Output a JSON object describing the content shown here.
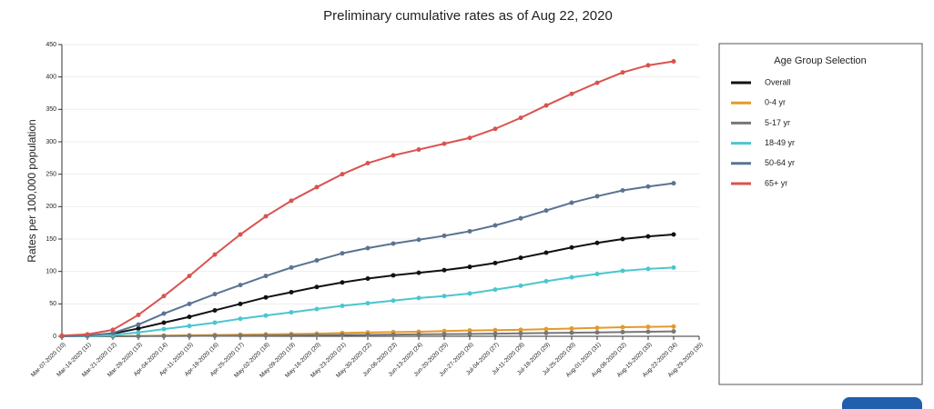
{
  "chart_data": {
    "type": "line",
    "title": "Preliminary cumulative rates as of Aug 22, 2020",
    "y_label": "Rates per 100,000 population",
    "legend_title": "Age Group Selection",
    "categories": [
      "Mar-07-2020 (10)",
      "Mar-14-2020 (11)",
      "Mar-21-2020 (12)",
      "Mar-28-2020 (13)",
      "Apr-04-2020 (14)",
      "Apr-11-2020 (15)",
      "Apr-18-2020 (16)",
      "Apr-25-2020 (17)",
      "May-02-2020 (18)",
      "May-09-2020 (19)",
      "May-16-2020 (20)",
      "May-23-2020 (21)",
      "May-30-2020 (22)",
      "Jun-06-2020 (23)",
      "Jun-13-2020 (24)",
      "Jun-20-2020 (25)",
      "Jun-27-2020 (26)",
      "Jul-04-2020 (27)",
      "Jul-11-2020 (28)",
      "Jul-18-2020 (29)",
      "Jul-25-2020 (30)",
      "Aug-01-2020 (31)",
      "Aug-08-2020 (32)",
      "Aug-15-2020 (33)",
      "Aug-22-2020 (34)",
      "Aug-29-2020 (35)"
    ],
    "series": [
      {
        "name": "Overall",
        "color": "#111111",
        "values": [
          0,
          1,
          4,
          12,
          21,
          30,
          40,
          50,
          60,
          68,
          76,
          83,
          89,
          94,
          98,
          102,
          107,
          113,
          121,
          129,
          137,
          144,
          150,
          154,
          157,
          null
        ]
      },
      {
        "name": "0-4 yr",
        "color": "#e39a2a",
        "values": [
          0,
          0,
          0,
          0.5,
          1,
          1.5,
          2,
          2.5,
          3,
          3.5,
          4,
          5,
          6,
          6.5,
          7,
          8,
          9,
          9.5,
          10,
          11,
          12,
          13,
          14,
          14.5,
          15,
          null
        ]
      },
      {
        "name": "5-17 yr",
        "color": "#777777",
        "values": [
          0,
          0,
          0,
          0.2,
          0.4,
          0.6,
          0.8,
          1,
          1.2,
          1.5,
          1.8,
          2,
          2.3,
          2.6,
          3,
          3.3,
          3.6,
          4,
          4.5,
          5,
          5.5,
          6,
          6.5,
          7,
          7.5,
          null
        ]
      },
      {
        "name": "18-49 yr",
        "color": "#4bc6cf",
        "values": [
          0,
          0,
          2,
          6,
          11,
          16,
          21,
          27,
          32,
          37,
          42,
          47,
          51,
          55,
          59,
          62,
          66,
          72,
          78,
          85,
          91,
          96,
          101,
          104,
          106,
          null
        ]
      },
      {
        "name": "50-64 yr",
        "color": "#5b7392",
        "values": [
          0,
          1,
          5,
          18,
          35,
          50,
          65,
          79,
          93,
          106,
          117,
          128,
          136,
          143,
          149,
          155,
          162,
          171,
          182,
          194,
          206,
          216,
          225,
          231,
          236,
          null
        ]
      },
      {
        "name": "65+ yr",
        "color": "#d9534f",
        "values": [
          1,
          3,
          10,
          33,
          62,
          93,
          126,
          157,
          185,
          209,
          230,
          250,
          267,
          279,
          288,
          297,
          306,
          320,
          337,
          356,
          374,
          391,
          407,
          418,
          424,
          null
        ]
      }
    ],
    "ylim": [
      0,
      450
    ],
    "yticks": [
      0,
      50,
      100,
      150,
      200,
      250,
      300,
      350,
      400,
      450
    ],
    "grid": true
  }
}
